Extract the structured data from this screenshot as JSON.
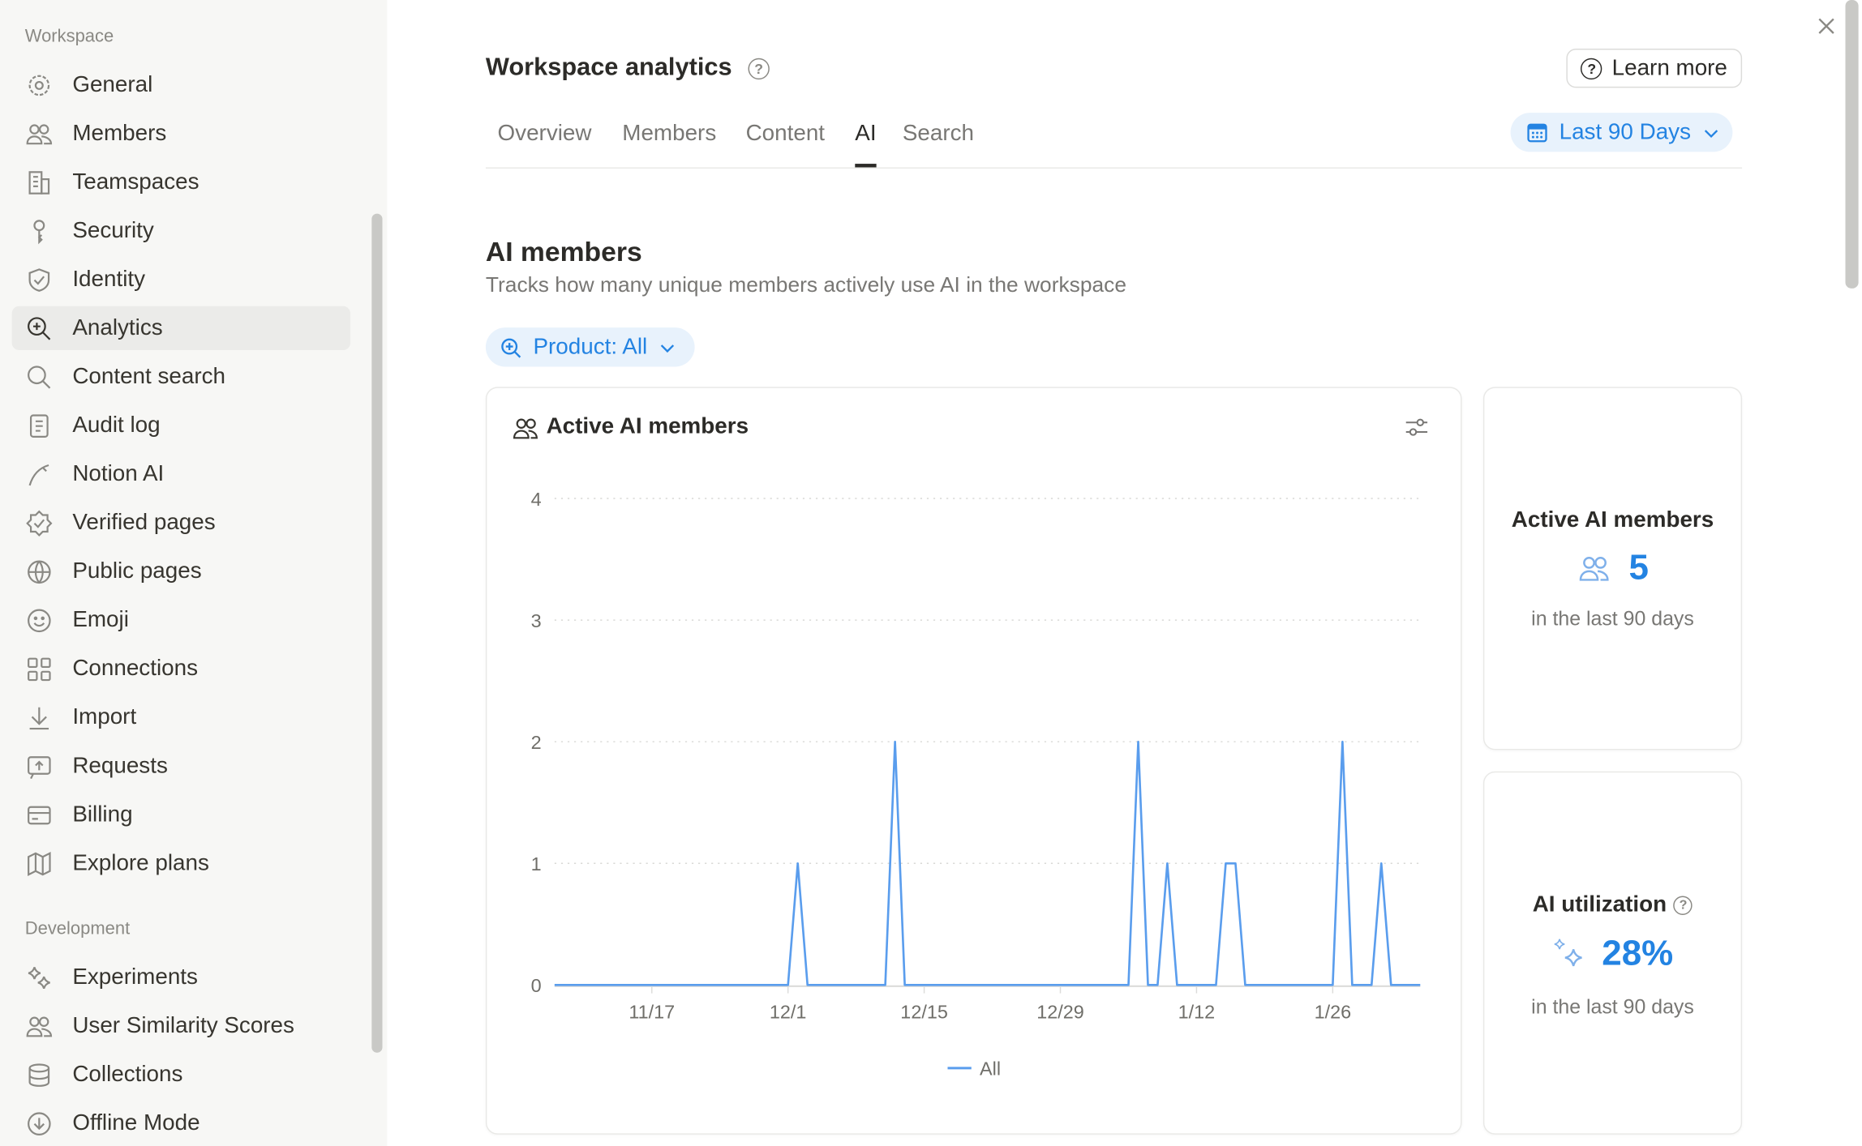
{
  "sidebar": {
    "sections": [
      {
        "label": "Workspace",
        "items": [
          {
            "label": "General",
            "icon": "gear-icon"
          },
          {
            "label": "Members",
            "icon": "people-icon"
          },
          {
            "label": "Teamspaces",
            "icon": "building-icon"
          },
          {
            "label": "Security",
            "icon": "key-icon"
          },
          {
            "label": "Identity",
            "icon": "shield-check-icon"
          },
          {
            "label": "Analytics",
            "icon": "analytics-search-icon",
            "active": true
          },
          {
            "label": "Content search",
            "icon": "search-icon"
          },
          {
            "label": "Audit log",
            "icon": "scroll-icon"
          },
          {
            "label": "Notion AI",
            "icon": "ai-pen-icon"
          },
          {
            "label": "Verified pages",
            "icon": "verified-badge-icon"
          },
          {
            "label": "Public pages",
            "icon": "globe-icon"
          },
          {
            "label": "Emoji",
            "icon": "smiley-icon"
          },
          {
            "label": "Connections",
            "icon": "grid-icon"
          },
          {
            "label": "Import",
            "icon": "download-icon"
          },
          {
            "label": "Requests",
            "icon": "request-icon"
          },
          {
            "label": "Billing",
            "icon": "credit-card-icon"
          },
          {
            "label": "Explore plans",
            "icon": "map-icon"
          }
        ]
      },
      {
        "label": "Development",
        "items": [
          {
            "label": "Experiments",
            "icon": "sparkles-icon"
          },
          {
            "label": "User Similarity Scores",
            "icon": "people-icon"
          },
          {
            "label": "Collections",
            "icon": "database-icon"
          },
          {
            "label": "Offline Mode",
            "icon": "download-circle-icon"
          }
        ]
      }
    ]
  },
  "header": {
    "title": "Workspace analytics",
    "help": "?",
    "learn_more": "Learn more",
    "date_range": "Last 90 Days",
    "tabs": [
      {
        "label": "Overview"
      },
      {
        "label": "Members"
      },
      {
        "label": "Content"
      },
      {
        "label": "AI",
        "active": true
      },
      {
        "label": "Search"
      }
    ]
  },
  "section": {
    "title": "AI members",
    "description": "Tracks how many unique members actively use AI in the workspace",
    "filter": "Product: All"
  },
  "chart_card": {
    "title": "Active AI members"
  },
  "stats": [
    {
      "label": "Active AI members",
      "value": "5",
      "sub": "in the last 90 days",
      "icon": "people-icon"
    },
    {
      "label": "AI utilization",
      "value": "28%",
      "sub": "in the last 90 days",
      "icon": "sparkles-icon"
    }
  ],
  "colors": {
    "accent": "#2383e2",
    "line": "#5a9ded",
    "sidebar_bg": "#f7f7f5"
  },
  "chart_data": {
    "type": "line",
    "title": "",
    "xlabel": "",
    "ylabel": "",
    "x_range": [
      "2024-11-07",
      "2025-02-04"
    ],
    "ylim": [
      0,
      4
    ],
    "y_ticks": [
      "0",
      "1",
      "2",
      "3",
      "4"
    ],
    "x_ticks": [
      "11/17",
      "12/1",
      "12/15",
      "12/29",
      "1/12",
      "1/26"
    ],
    "x_tick_dates": [
      "2024-11-17",
      "2024-12-01",
      "2024-12-15",
      "2024-12-29",
      "2025-01-12",
      "2025-01-26"
    ],
    "grid": "horizontal dotted",
    "legend": "bottom",
    "series": [
      {
        "name": "All",
        "default_value": 0,
        "points": [
          [
            "2024-12-02",
            1
          ],
          [
            "2024-12-12",
            2
          ],
          [
            "2025-01-06",
            2
          ],
          [
            "2025-01-09",
            1
          ],
          [
            "2025-01-15",
            1
          ],
          [
            "2025-01-16",
            1
          ],
          [
            "2025-01-27",
            2
          ],
          [
            "2025-01-31",
            1
          ]
        ]
      }
    ]
  }
}
